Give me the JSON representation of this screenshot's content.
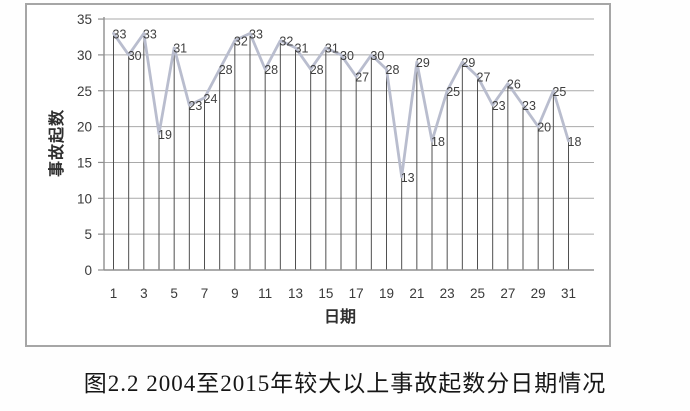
{
  "figure": {
    "caption": "图2.2 2004至2015年较大以上事故起数分日期情况"
  },
  "chart_data": {
    "type": "line",
    "title": "",
    "xlabel": "日期",
    "ylabel": "事故起数",
    "categories": [
      1,
      2,
      3,
      4,
      5,
      6,
      7,
      8,
      9,
      10,
      11,
      12,
      13,
      14,
      15,
      16,
      17,
      18,
      19,
      20,
      21,
      22,
      23,
      24,
      25,
      26,
      27,
      28,
      29,
      30,
      31
    ],
    "values": [
      33,
      30,
      33,
      19,
      31,
      23,
      24,
      28,
      32,
      33,
      28,
      32,
      31,
      28,
      31,
      30,
      27,
      30,
      28,
      13,
      29,
      18,
      25,
      29,
      27,
      23,
      26,
      23,
      20,
      25,
      18
    ],
    "ylim": [
      0,
      35
    ],
    "yticks": [
      0,
      5,
      10,
      15,
      20,
      25,
      30,
      35
    ],
    "xticks_labeled": [
      1,
      3,
      5,
      7,
      9,
      11,
      13,
      15,
      17,
      19,
      21,
      23,
      25,
      27,
      29,
      31
    ],
    "grid": "horizontal",
    "drop_lines": true,
    "data_labels": true,
    "legend": "none",
    "colors": {
      "series_line": "#b9bdce",
      "drop_line": "#4f4f4f",
      "gridline": "#a9a9a9",
      "axis_line": "#8f8f8f",
      "data_label": "#3f3f3f",
      "tick_label": "#3a3a3a",
      "axis_title": "#2f2f2f",
      "frame_border": "#a6a6a6",
      "plot_background": "#ffffff"
    }
  }
}
